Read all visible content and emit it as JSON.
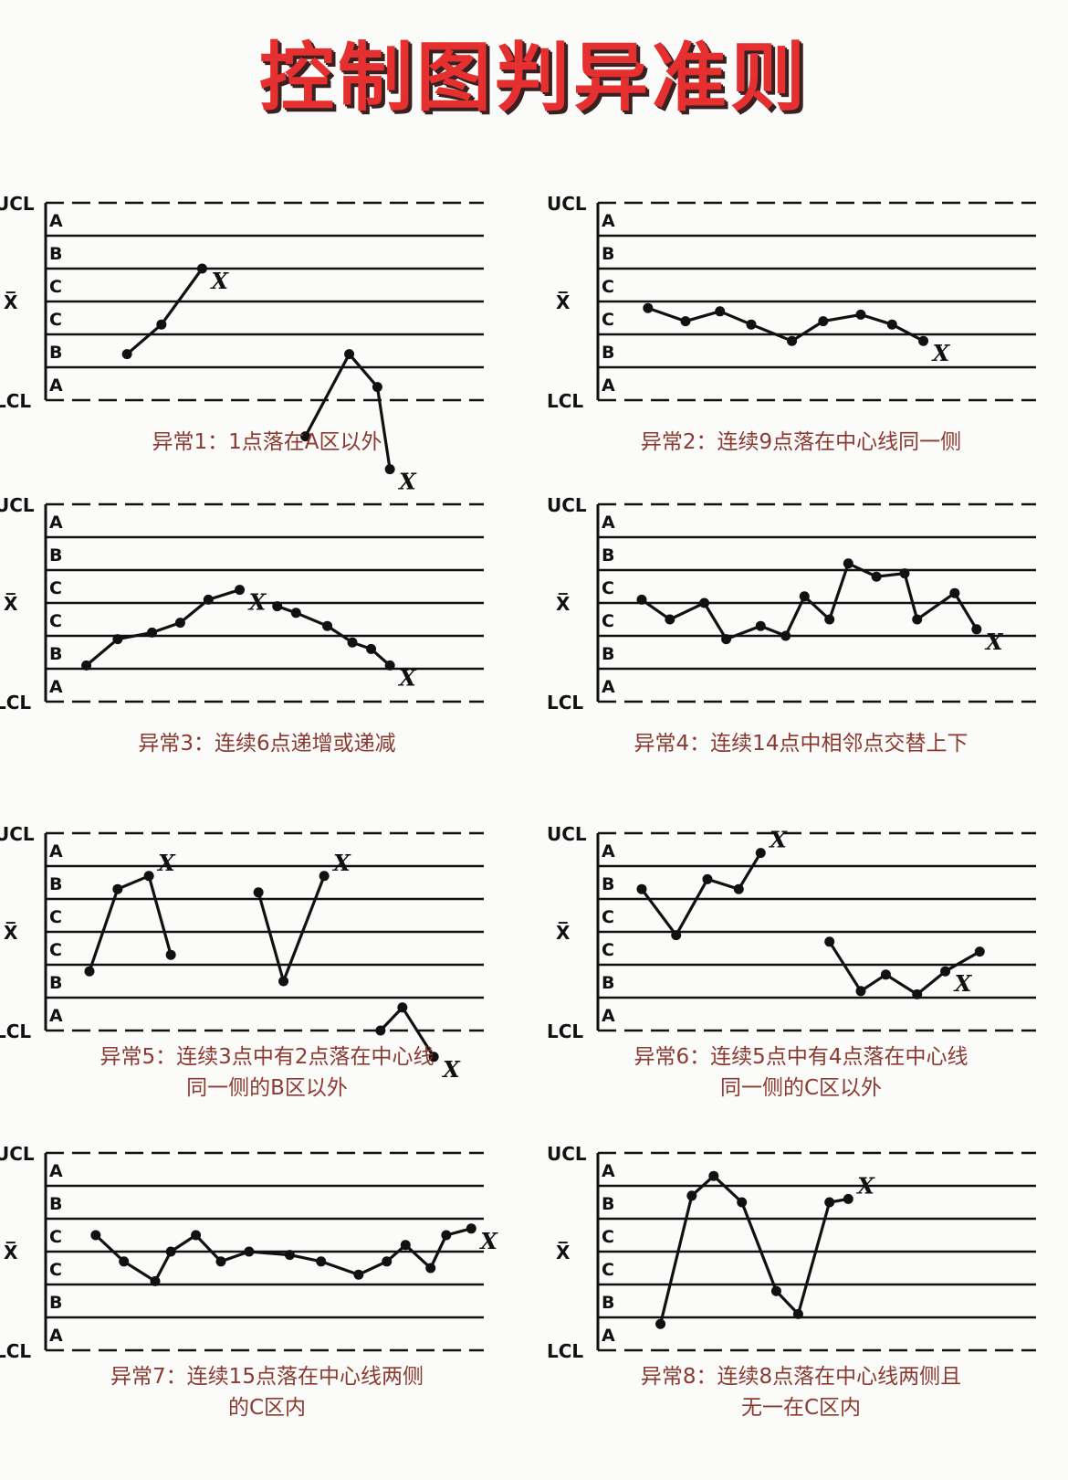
{
  "title": "控制图判异准则",
  "axis_labels": {
    "ucl": "UCL",
    "center": "X̅",
    "lcl": "LCL",
    "x_mark": "X"
  },
  "zones": [
    "A",
    "B",
    "C",
    "C",
    "B",
    "A"
  ],
  "colors": {
    "title": "#e63030",
    "caption": "#8a3a30",
    "ink": "#111111"
  },
  "panels": [
    {
      "caption_lines": [
        "异常1：1点落在A区以外"
      ],
      "series": [
        [
          [
            2.6,
            1.6
          ],
          [
            3.7,
            0.7
          ],
          [
            5.0,
            -1.0
          ]
        ],
        [
          [
            8.3,
            4.1
          ],
          [
            9.7,
            1.6
          ],
          [
            10.6,
            2.6
          ],
          [
            11.0,
            5.1
          ]
        ]
      ],
      "marks": [
        [
          5.0,
          -1.0
        ],
        [
          11.0,
          5.1
        ]
      ]
    },
    {
      "caption_lines": [
        "异常2：连续9点落在中心线同一侧"
      ],
      "series": [
        [
          [
            1.6,
            0.2
          ],
          [
            2.8,
            0.6
          ],
          [
            3.9,
            0.3
          ],
          [
            4.9,
            0.7
          ],
          [
            6.2,
            1.2
          ],
          [
            7.2,
            0.6
          ],
          [
            8.4,
            0.4
          ],
          [
            9.4,
            0.7
          ],
          [
            10.4,
            1.2
          ]
        ]
      ],
      "marks": [
        [
          10.4,
          1.2
        ]
      ]
    },
    {
      "caption_lines": [
        "异常3：连续6点递增或递减"
      ],
      "series": [
        [
          [
            1.3,
            1.9
          ],
          [
            2.3,
            1.1
          ],
          [
            3.4,
            0.9
          ],
          [
            4.3,
            0.6
          ],
          [
            5.2,
            -0.1
          ],
          [
            6.2,
            -0.4
          ]
        ],
        [
          [
            7.4,
            0.1
          ],
          [
            8.0,
            0.3
          ],
          [
            9.0,
            0.7
          ],
          [
            9.8,
            1.2
          ],
          [
            10.4,
            1.4
          ],
          [
            11.0,
            1.9
          ]
        ]
      ],
      "marks": [
        [
          6.2,
          -0.4
        ],
        [
          11.0,
          1.9
        ]
      ]
    },
    {
      "caption_lines": [
        "异常4：连续14点中相邻点交替上下"
      ],
      "series": [
        [
          [
            1.4,
            -0.1
          ],
          [
            2.3,
            0.5
          ],
          [
            3.4,
            0.0
          ],
          [
            4.1,
            1.1
          ],
          [
            5.2,
            0.7
          ],
          [
            6.0,
            1.0
          ],
          [
            6.6,
            -0.2
          ],
          [
            7.4,
            0.5
          ],
          [
            8.0,
            -1.2
          ],
          [
            8.9,
            -0.8
          ],
          [
            9.8,
            -0.9
          ],
          [
            10.2,
            0.5
          ],
          [
            11.4,
            -0.3
          ],
          [
            12.1,
            0.8
          ]
        ]
      ],
      "marks": [
        [
          12.1,
          0.8
        ]
      ]
    },
    {
      "caption_lines": [
        "异常5：连续3点中有2点落在中心线",
        "同一侧的B区以外"
      ],
      "series": [
        [
          [
            1.4,
            1.2
          ],
          [
            2.3,
            -1.3
          ],
          [
            3.3,
            -1.7
          ],
          [
            4.0,
            0.7
          ]
        ],
        [
          [
            6.8,
            -1.2
          ],
          [
            7.6,
            1.5
          ],
          [
            8.9,
            -1.7
          ]
        ],
        [
          [
            10.7,
            3.0
          ],
          [
            11.4,
            2.3
          ],
          [
            12.4,
            3.8
          ]
        ]
      ],
      "marks": [
        [
          3.3,
          -1.7
        ],
        [
          8.9,
          -1.7
        ],
        [
          12.4,
          3.8
        ]
      ]
    },
    {
      "caption_lines": [
        "异常6：连续5点中有4点落在中心线",
        "同一侧的C区以外"
      ],
      "series": [
        [
          [
            1.4,
            -1.3
          ],
          [
            2.5,
            0.1
          ],
          [
            3.5,
            -1.6
          ],
          [
            4.5,
            -1.3
          ],
          [
            5.2,
            -2.4
          ]
        ],
        [
          [
            7.4,
            0.3
          ],
          [
            8.4,
            1.8
          ],
          [
            9.2,
            1.3
          ],
          [
            10.2,
            1.9
          ],
          [
            11.1,
            1.2
          ],
          [
            12.2,
            0.6
          ]
        ]
      ],
      "marks": [
        [
          5.2,
          -2.4
        ],
        [
          11.1,
          1.2
        ]
      ]
    },
    {
      "caption_lines": [
        "异常7：连续15点落在中心线两侧",
        "的C区内"
      ],
      "series": [
        [
          [
            1.6,
            -0.5
          ],
          [
            2.5,
            0.3
          ],
          [
            3.5,
            0.9
          ],
          [
            4.0,
            0.0
          ],
          [
            4.8,
            -0.5
          ],
          [
            5.6,
            0.3
          ],
          [
            6.5,
            0.0
          ],
          [
            7.8,
            0.1
          ],
          [
            8.8,
            0.3
          ],
          [
            10.0,
            0.7
          ],
          [
            10.9,
            0.3
          ],
          [
            11.5,
            -0.2
          ],
          [
            12.3,
            0.5
          ],
          [
            12.8,
            -0.5
          ],
          [
            13.6,
            -0.7
          ]
        ]
      ],
      "marks": [
        [
          13.6,
          -0.7
        ]
      ]
    },
    {
      "caption_lines": [
        "异常8：连续8点落在中心线两侧且",
        "无一在C区内"
      ],
      "series": [
        [
          [
            2.0,
            2.2
          ],
          [
            3.0,
            -1.7
          ],
          [
            3.7,
            -2.3
          ],
          [
            4.6,
            -1.5
          ],
          [
            5.7,
            1.2
          ],
          [
            6.4,
            1.9
          ],
          [
            7.4,
            -1.5
          ],
          [
            8.0,
            -1.6
          ]
        ]
      ],
      "marks": [
        [
          8.0,
          -1.6
        ]
      ]
    }
  ]
}
